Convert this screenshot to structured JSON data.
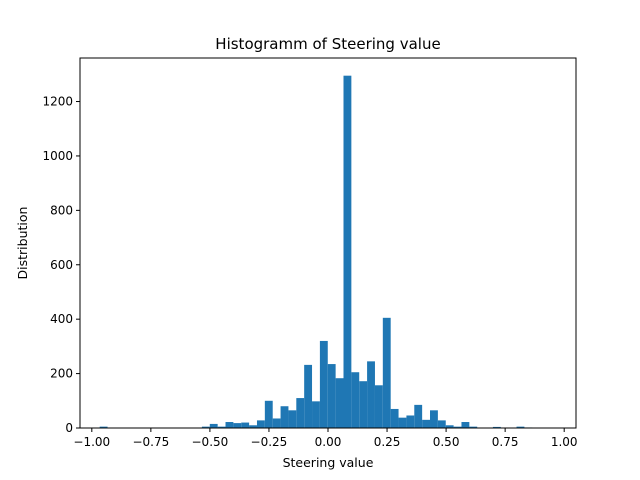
{
  "chart_data": {
    "type": "bar",
    "title": "Histogramm of Steering value",
    "xlabel": "Steering value",
    "ylabel": "Distribution",
    "xlim": [
      -1.05,
      1.05
    ],
    "ylim": [
      0,
      1360
    ],
    "xticks": [
      "−1.00",
      "−0.75",
      "−0.50",
      "−0.25",
      "0.00",
      "0.25",
      "0.50",
      "0.75",
      "1.00"
    ],
    "xtick_values": [
      -1.0,
      -0.75,
      -0.5,
      -0.25,
      0.0,
      0.25,
      0.5,
      0.75,
      1.0
    ],
    "yticks": [
      "0",
      "200",
      "400",
      "600",
      "800",
      "1000",
      "1200"
    ],
    "ytick_values": [
      0,
      200,
      400,
      600,
      800,
      1000,
      1200
    ],
    "grid": false,
    "bar_color": "#1f77b4",
    "bins": {
      "start": -1.0,
      "width": 0.0333,
      "counts": [
        0,
        5,
        0,
        0,
        0,
        0,
        0,
        0,
        0,
        0,
        0,
        0,
        0,
        0,
        5,
        15,
        5,
        22,
        18,
        20,
        10,
        28,
        100,
        35,
        80,
        65,
        110,
        232,
        98,
        320,
        235,
        183,
        1295,
        205,
        172,
        245,
        157,
        405,
        70,
        38,
        46,
        85,
        30,
        65,
        28,
        10,
        5,
        22,
        5,
        0,
        0,
        4,
        0,
        0,
        5,
        2,
        0,
        0,
        0,
        0
      ]
    }
  }
}
